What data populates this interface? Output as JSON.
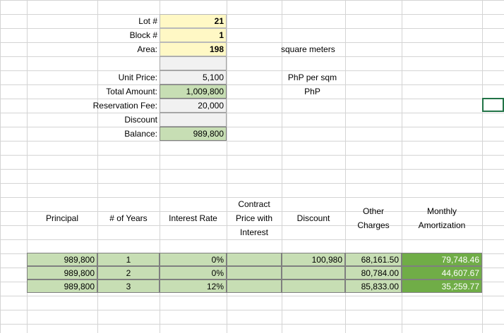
{
  "info": {
    "lot_label": "Lot #",
    "lot_value": "21",
    "block_label": "Block #",
    "block_value": "1",
    "area_label": "Area:",
    "area_value": "198",
    "area_unit": "square meters",
    "unit_price_label": "Unit Price:",
    "unit_price_value": "5,100",
    "unit_price_unit": "PhP per sqm",
    "total_label": "Total Amount:",
    "total_value": "1,009,800",
    "total_unit": "PhP",
    "reservation_label": "Reservation Fee:",
    "reservation_value": "20,000",
    "discount_label": "Discount",
    "discount_value": "",
    "balance_label": "Balance:",
    "balance_value": "989,800"
  },
  "table": {
    "headers": {
      "principal": "Principal",
      "years": "# of Years",
      "interest": "Interest Rate",
      "contract_1": "Contract",
      "contract_2": "Price with",
      "contract_3": "Interest",
      "discount": "Discount",
      "other_1": "Other",
      "other_2": "Charges",
      "monthly_1": "Monthly",
      "monthly_2": "Amortization"
    },
    "rows": [
      {
        "principal": "989,800",
        "years": "1",
        "rate": "0%",
        "contract": "",
        "discount": "100,980",
        "other": "68,161.50",
        "monthly": "79,748.46"
      },
      {
        "principal": "989,800",
        "years": "2",
        "rate": "0%",
        "contract": "",
        "discount": "",
        "other": "80,784.00",
        "monthly": "44,607.67"
      },
      {
        "principal": "989,800",
        "years": "3",
        "rate": "12%",
        "contract": "",
        "discount": "",
        "other": "85,833.00",
        "monthly": "35,259.77"
      }
    ]
  },
  "colors": {
    "yellow": "#fff8c5",
    "gray": "#f1f1f1",
    "light_green": "#c7deb4",
    "dark_green": "#70ad47",
    "selection": "#217346"
  }
}
